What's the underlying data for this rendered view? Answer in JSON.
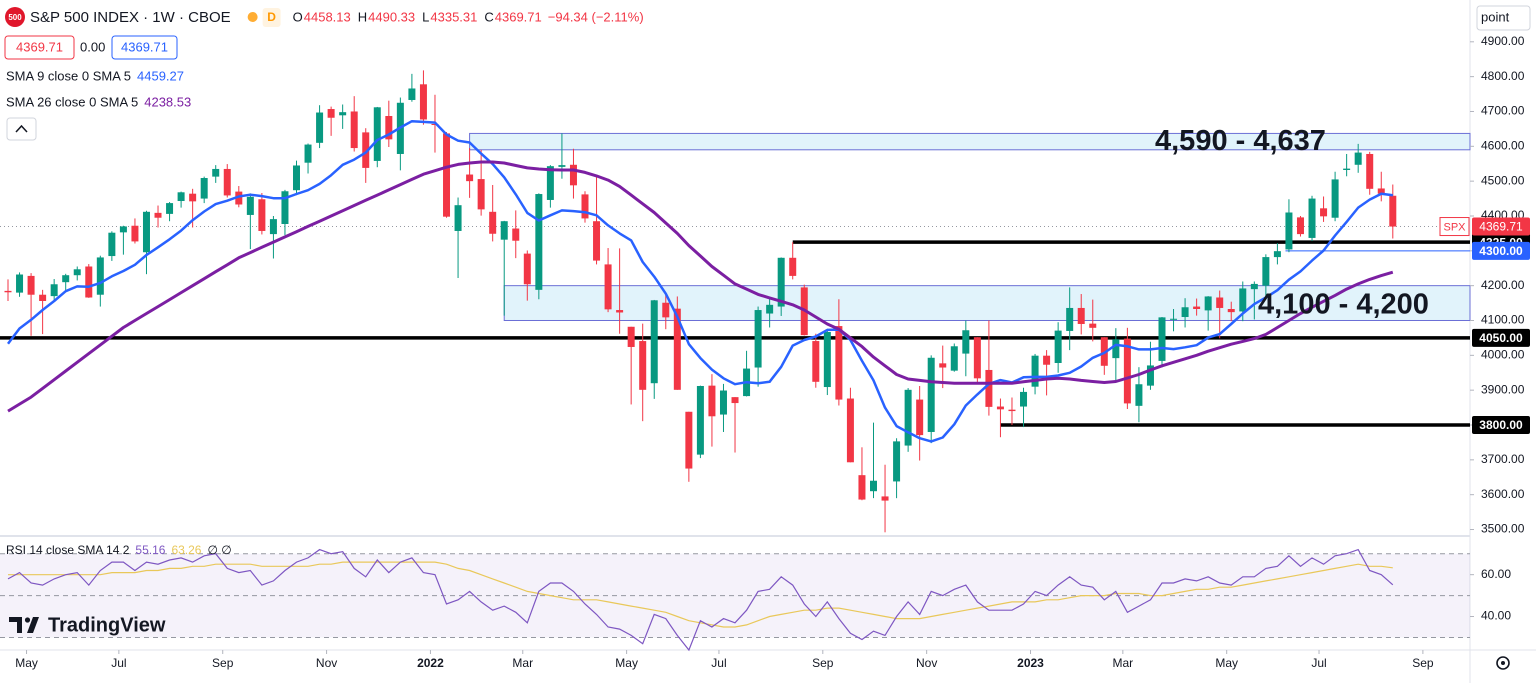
{
  "header": {
    "badge": "500",
    "title": "S&P 500 INDEX · 1W · CBOE",
    "session": "D",
    "o": "O",
    "h": "H",
    "l": "L",
    "c": "C",
    "change": "−94.34 (−2.11%)",
    "spread": "0.00",
    "unit": "point",
    "ticker": "SPX",
    "logo": "TradingView"
  },
  "chart_data": {
    "type": "candlestick",
    "up_color": "#089981",
    "down_color": "#f23645",
    "grid": false,
    "ylim": [
      3490,
      5020
    ],
    "yticks": [
      {
        "value": 3500,
        "label": "3500.00"
      },
      {
        "value": 3600,
        "label": "3600.00"
      },
      {
        "value": 3700,
        "label": "3700.00"
      },
      {
        "value": 3800,
        "label": "3800.00"
      },
      {
        "value": 3900,
        "label": "3900.00"
      },
      {
        "value": 4000,
        "label": "4000.00"
      },
      {
        "value": 4100,
        "label": "4100.00"
      },
      {
        "value": 4200,
        "label": "4200.00"
      },
      {
        "value": 4300,
        "label": "4300.00"
      },
      {
        "value": 4400,
        "label": "4400.00"
      },
      {
        "value": 4500,
        "label": "4500.00"
      },
      {
        "value": 4600,
        "label": "4600.00"
      },
      {
        "value": 4700,
        "label": "4700.00"
      },
      {
        "value": 4800,
        "label": "4800.00"
      },
      {
        "value": 4900,
        "label": "4900.00"
      }
    ],
    "xticks": [
      {
        "value": 1,
        "label": "May"
      },
      {
        "value": 9,
        "label": "Jul"
      },
      {
        "value": 18,
        "label": "Sep"
      },
      {
        "value": 27,
        "label": "Nov"
      },
      {
        "value": 36,
        "label": "2022"
      },
      {
        "value": 44,
        "label": "Mar"
      },
      {
        "value": 53,
        "label": "May"
      },
      {
        "value": 61,
        "label": "Jul"
      },
      {
        "value": 70,
        "label": "Sep"
      },
      {
        "value": 79,
        "label": "Nov"
      },
      {
        "value": 88,
        "label": "2023"
      },
      {
        "value": 96,
        "label": "Mar"
      },
      {
        "value": 105,
        "label": "May"
      },
      {
        "value": 113,
        "label": "Jul"
      },
      {
        "value": 122,
        "label": "Sep"
      }
    ],
    "ohlc": [
      [
        4185,
        4218,
        4156,
        4181
      ],
      [
        4180,
        4238,
        4168,
        4232
      ],
      [
        4228,
        4236,
        4056,
        4174
      ],
      [
        4174,
        4188,
        4061,
        4156
      ],
      [
        4170,
        4219,
        4154,
        4204
      ],
      [
        4210,
        4234,
        4182,
        4230
      ],
      [
        4230,
        4255,
        4215,
        4247
      ],
      [
        4255,
        4262,
        4165,
        4166
      ],
      [
        4174,
        4286,
        4140,
        4281
      ],
      [
        4285,
        4356,
        4271,
        4352
      ],
      [
        4353,
        4372,
        4289,
        4370
      ],
      [
        4372,
        4393,
        4321,
        4327
      ],
      [
        4296,
        4415,
        4233,
        4412
      ],
      [
        4409,
        4430,
        4367,
        4395
      ],
      [
        4406,
        4440,
        4385,
        4437
      ],
      [
        4443,
        4470,
        4424,
        4468
      ],
      [
        4464,
        4478,
        4367,
        4442
      ],
      [
        4450,
        4513,
        4437,
        4509
      ],
      [
        4513,
        4546,
        4495,
        4535
      ],
      [
        4535,
        4549,
        4453,
        4459
      ],
      [
        4470,
        4486,
        4425,
        4433
      ],
      [
        4403,
        4465,
        4305,
        4455
      ],
      [
        4448,
        4466,
        4347,
        4357
      ],
      [
        4348,
        4400,
        4278,
        4391
      ],
      [
        4377,
        4475,
        4345,
        4471
      ],
      [
        4474,
        4559,
        4460,
        4545
      ],
      [
        4553,
        4608,
        4522,
        4605
      ],
      [
        4610,
        4718,
        4595,
        4697
      ],
      [
        4707,
        4714,
        4630,
        4682
      ],
      [
        4689,
        4720,
        4650,
        4698
      ],
      [
        4700,
        4744,
        4585,
        4595
      ],
      [
        4640,
        4652,
        4495,
        4538
      ],
      [
        4558,
        4713,
        4540,
        4712
      ],
      [
        4687,
        4731,
        4598,
        4620
      ],
      [
        4578,
        4740,
        4531,
        4725
      ],
      [
        4733,
        4808,
        4728,
        4766
      ],
      [
        4778,
        4818,
        4662,
        4677
      ],
      [
        4664,
        4748,
        4582,
        4662
      ],
      [
        4637,
        4641,
        4395,
        4398
      ],
      [
        4357,
        4453,
        4222,
        4431
      ],
      [
        4519,
        4595,
        4452,
        4500
      ],
      [
        4506,
        4590,
        4401,
        4419
      ],
      [
        4412,
        4489,
        4327,
        4349
      ],
      [
        4332,
        4386,
        4114,
        4385
      ],
      [
        4364,
        4416,
        4279,
        4329
      ],
      [
        4292,
        4301,
        4157,
        4204
      ],
      [
        4188,
        4465,
        4161,
        4463
      ],
      [
        4446,
        4546,
        4424,
        4543
      ],
      [
        4541,
        4637,
        4507,
        4546
      ],
      [
        4547,
        4593,
        4450,
        4488
      ],
      [
        4462,
        4471,
        4381,
        4393
      ],
      [
        4385,
        4513,
        4261,
        4272
      ],
      [
        4261,
        4308,
        4124,
        4132
      ],
      [
        4130,
        4307,
        4062,
        4123
      ],
      [
        4082,
        4082,
        3859,
        4024
      ],
      [
        4041,
        4091,
        3811,
        3901
      ],
      [
        3920,
        4159,
        3875,
        4158
      ],
      [
        4151,
        4178,
        4075,
        4109
      ],
      [
        4134,
        4169,
        3901,
        3901
      ],
      [
        3838,
        3838,
        3637,
        3675
      ],
      [
        3715,
        3913,
        3705,
        3912
      ],
      [
        3913,
        3946,
        3738,
        3825
      ],
      [
        3830,
        3918,
        3780,
        3899
      ],
      [
        3880,
        3880,
        3721,
        3863
      ],
      [
        3883,
        4013,
        3882,
        3962
      ],
      [
        3965,
        4140,
        3910,
        4130
      ],
      [
        4120,
        4168,
        4080,
        4145
      ],
      [
        4140,
        4281,
        4113,
        4280
      ],
      [
        4280,
        4325,
        4218,
        4228
      ],
      [
        4195,
        4203,
        4057,
        4058
      ],
      [
        4041,
        4062,
        3907,
        3924
      ],
      [
        3909,
        4076,
        3886,
        4067
      ],
      [
        4084,
        4161,
        3856,
        3873
      ],
      [
        3876,
        3907,
        3693,
        3693
      ],
      [
        3656,
        3736,
        3584,
        3586
      ],
      [
        3610,
        3807,
        3590,
        3640
      ],
      [
        3595,
        3686,
        3492,
        3583
      ],
      [
        3638,
        3762,
        3590,
        3753
      ],
      [
        3741,
        3906,
        3723,
        3901
      ],
      [
        3873,
        3912,
        3698,
        3771
      ],
      [
        3780,
        4000,
        3748,
        3993
      ],
      [
        3977,
        4028,
        3906,
        3965
      ],
      [
        3956,
        4034,
        3953,
        4026
      ],
      [
        4005,
        4100,
        3940,
        4072
      ],
      [
        4052,
        4052,
        3918,
        3934
      ],
      [
        3958,
        4100,
        3827,
        3852
      ],
      [
        3853,
        3876,
        3765,
        3845
      ],
      [
        3844,
        3879,
        3800,
        3840
      ],
      [
        3853,
        3907,
        3794,
        3895
      ],
      [
        3910,
        4004,
        3888,
        3999
      ],
      [
        3999,
        4015,
        3885,
        3973
      ],
      [
        3978,
        4095,
        3950,
        4071
      ],
      [
        4070,
        4195,
        4015,
        4136
      ],
      [
        4136,
        4176,
        4060,
        4090
      ],
      [
        4091,
        4160,
        4040,
        4079
      ],
      [
        4052,
        4052,
        3944,
        3970
      ],
      [
        3992,
        4078,
        3928,
        4046
      ],
      [
        4048,
        4079,
        3846,
        3862
      ],
      [
        3855,
        3966,
        3808,
        3917
      ],
      [
        3913,
        4039,
        3901,
        3971
      ],
      [
        3984,
        4110,
        3965,
        4109
      ],
      [
        4102,
        4133,
        4069,
        4105
      ],
      [
        4110,
        4164,
        4080,
        4138
      ],
      [
        4140,
        4163,
        4114,
        4133
      ],
      [
        4129,
        4170,
        4071,
        4169
      ],
      [
        4166,
        4186,
        4049,
        4136
      ],
      [
        4133,
        4154,
        4098,
        4124
      ],
      [
        4126,
        4212,
        4098,
        4192
      ],
      [
        4190,
        4212,
        4103,
        4205
      ],
      [
        4200,
        4290,
        4166,
        4282
      ],
      [
        4282,
        4322,
        4261,
        4299
      ],
      [
        4304,
        4448,
        4296,
        4410
      ],
      [
        4396,
        4400,
        4341,
        4348
      ],
      [
        4337,
        4458,
        4328,
        4450
      ],
      [
        4422,
        4456,
        4383,
        4399
      ],
      [
        4395,
        4527,
        4385,
        4505
      ],
      [
        4532,
        4578,
        4514,
        4536
      ],
      [
        4547,
        4607,
        4524,
        4582
      ],
      [
        4578,
        4584,
        4461,
        4478
      ],
      [
        4479,
        4527,
        4442,
        4464
      ],
      [
        4458.13,
        4490.33,
        4335.31,
        4369.71
      ]
    ],
    "overlays": [
      {
        "name": "SMA 9 close 0 SMA 5",
        "color": "#2962ff",
        "values": [
          4033,
          4077,
          4102,
          4130,
          4156,
          4184,
          4198,
          4197,
          4208,
          4227,
          4242,
          4260,
          4288,
          4310,
          4333,
          4358,
          4388,
          4413,
          4434,
          4444,
          4456,
          4461,
          4457,
          4451,
          4451,
          4463,
          4474,
          4492,
          4517,
          4547,
          4562,
          4582,
          4618,
          4634,
          4654,
          4672,
          4670,
          4668,
          4634,
          4616,
          4611,
          4579,
          4549,
          4511,
          4462,
          4409,
          4387,
          4402,
          4416,
          4414,
          4411,
          4402,
          4373,
          4350,
          4330,
          4268,
          4226,
          4177,
          4111,
          4032,
          3992,
          3959,
          3934,
          3917,
          3923,
          3920,
          3924,
          3967,
          4028,
          4044,
          4054,
          4073,
          4074,
          4044,
          3984,
          3928,
          3850,
          3797,
          3779,
          3762,
          3753,
          3764,
          3802,
          3856,
          3888,
          3918,
          3929,
          3922,
          3937,
          3938,
          3938,
          3942,
          3950,
          3968,
          3993,
          4007,
          4030,
          4026,
          4017,
          4017,
          4021,
          4018,
          4023,
          4029,
          4051,
          4061,
          4090,
          4120,
          4147,
          4166,
          4187,
          4217,
          4241,
          4272,
          4301,
          4344,
          4383,
          4424,
          4447,
          4464,
          4459.27
        ]
      },
      {
        "name": "SMA 26 close 0 SMA 5",
        "color": "#7b1fa2",
        "values": [
          3840,
          3860,
          3880,
          3905,
          3930,
          3955,
          3980,
          4005,
          4030,
          4055,
          4080,
          4100,
          4120,
          4140,
          4160,
          4180,
          4200,
          4220,
          4240,
          4260,
          4280,
          4295,
          4310,
          4325,
          4340,
          4355,
          4370,
          4385,
          4400,
          4415,
          4430,
          4445,
          4460,
          4475,
          4490,
          4505,
          4520,
          4530,
          4540,
          4548,
          4552,
          4555,
          4555,
          4552,
          4545,
          4538,
          4535,
          4533,
          4532,
          4532,
          4525,
          4515,
          4503,
          4485,
          4460,
          4435,
          4410,
          4380,
          4350,
          4315,
          4285,
          4255,
          4230,
          4205,
          4190,
          4175,
          4165,
          4155,
          4145,
          4130,
          4110,
          4090,
          4075,
          4050,
          4025,
          3995,
          3970,
          3945,
          3932,
          3928,
          3924,
          3922,
          3920,
          3920,
          3920,
          3920,
          3920,
          3920,
          3924,
          3928,
          3932,
          3934,
          3932,
          3928,
          3925,
          3922,
          3925,
          3935,
          3945,
          3958,
          3970,
          3980,
          3990,
          4000,
          4012,
          4022,
          4032,
          4040,
          4048,
          4060,
          4080,
          4100,
          4120,
          4138,
          4155,
          4172,
          4190,
          4205,
          4218,
          4229,
          4238.53
        ]
      }
    ],
    "zones": [
      {
        "low": 4590,
        "high": 4637,
        "label": "4,590 - 4,637"
      },
      {
        "low": 4100,
        "high": 4200,
        "label": "4,100 - 4,200"
      }
    ],
    "levels": [
      {
        "value": 4325,
        "label": "4325.00",
        "color": "#000000"
      },
      {
        "value": 4300,
        "label": "4300.00",
        "color": "#2962ff"
      },
      {
        "value": 4050,
        "label": "4050.00",
        "color": "#000000"
      },
      {
        "value": 3800,
        "label": "3800.00",
        "color": "#000000"
      }
    ],
    "rsi": {
      "name": "RSI 14 close SMA 14 2",
      "color": "#7e57c2",
      "ma_color": "#e9c85a",
      "extra": "∅ ∅",
      "ylim": [
        24,
        78
      ],
      "yticks": [
        {
          "value": 60,
          "label": "60.00"
        },
        {
          "value": 40,
          "label": "40.00"
        }
      ],
      "levels": [
        70,
        50,
        30
      ],
      "values": [
        58,
        61,
        56,
        55,
        58,
        60,
        61,
        55,
        62,
        66,
        66,
        62,
        66,
        65,
        67,
        68,
        66,
        69,
        70,
        63,
        61,
        62,
        55,
        57,
        62,
        66,
        68,
        72,
        70,
        71,
        63,
        59,
        67,
        61,
        66,
        68,
        61,
        60,
        46,
        48,
        52,
        47,
        43,
        45,
        42,
        37,
        52,
        56,
        56,
        52,
        46,
        41,
        35,
        34,
        31,
        27,
        41,
        39,
        31,
        24,
        38,
        35,
        39,
        37,
        43,
        52,
        53,
        59,
        55,
        46,
        40,
        47,
        39,
        32,
        29,
        33,
        31,
        40,
        47,
        41,
        52,
        50,
        53,
        55,
        47,
        43,
        43,
        43,
        46,
        52,
        50,
        55,
        59,
        55,
        54,
        48,
        52,
        42,
        45,
        48,
        56,
        56,
        58,
        57,
        59,
        56,
        55,
        59,
        59,
        63,
        64,
        69,
        64,
        68,
        65,
        69,
        70,
        72,
        62,
        60,
        55.16
      ],
      "ma_values": [
        60,
        60,
        60,
        60,
        60,
        60,
        60,
        60,
        60,
        61,
        61,
        61,
        62,
        62,
        63,
        63,
        64,
        64,
        65,
        65,
        65,
        65,
        64,
        64,
        64,
        64,
        64,
        65,
        65,
        66,
        66,
        66,
        66,
        66,
        66,
        66,
        66,
        66,
        65,
        63,
        62,
        60,
        58,
        56,
        54,
        52,
        51,
        50,
        49,
        48,
        48,
        48,
        47,
        46,
        45,
        44,
        43,
        42,
        40,
        38,
        37,
        36,
        35,
        35,
        36,
        38,
        40,
        41,
        42,
        43,
        43,
        44,
        44,
        43,
        42,
        41,
        40,
        39,
        39,
        39,
        40,
        41,
        42,
        43,
        44,
        45,
        46,
        47,
        47,
        47,
        48,
        48,
        49,
        50,
        50,
        50,
        51,
        51,
        51,
        50,
        50,
        51,
        52,
        53,
        53,
        54,
        54,
        55,
        56,
        57,
        58,
        59,
        60,
        61,
        62,
        63,
        64,
        65,
        64,
        64,
        63.26
      ]
    }
  }
}
